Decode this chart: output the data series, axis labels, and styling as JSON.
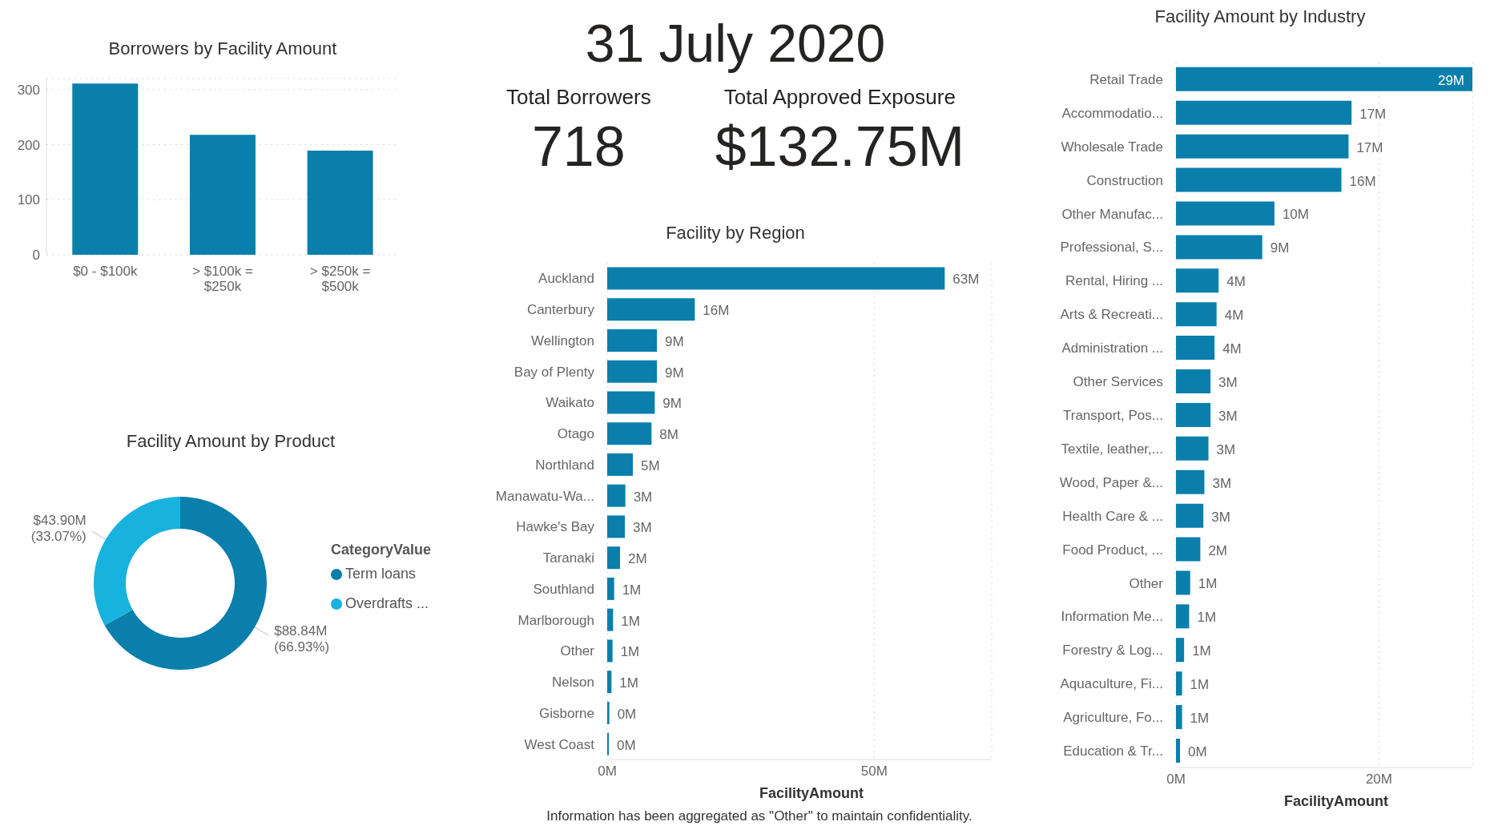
{
  "chart_data": [
    {
      "type": "bar",
      "title": "Borrowers by Facility Amount",
      "categories": [
        "$0 - $100k",
        "> $100k = $250k",
        "> $250k = $500k"
      ],
      "values": [
        311,
        218,
        189
      ],
      "color": "#0a7fab",
      "ylim": [
        0,
        320
      ],
      "yticks": [
        0,
        100,
        200,
        300
      ],
      "grid": "y"
    },
    {
      "type": "donut",
      "title": "Facility Amount by Product",
      "categories": [
        "Term loans",
        "Overdrafts ..."
      ],
      "values": [
        66.93,
        33.07
      ],
      "value_labels": [
        "$88.84M\n(66.93%)",
        "$43.90M\n(33.07%)"
      ],
      "colors": [
        "#0a7fab",
        "#18b2df"
      ],
      "legend_title": "CategoryValue",
      "legend": "right"
    },
    {
      "type": "other",
      "title": "31 July 2020",
      "annotations": [
        "Total Borrowers",
        "718",
        "Total Approved Exposure",
        "$132.75M"
      ]
    },
    {
      "type": "bar",
      "orientation": "horizontal",
      "title": "Facility by Region",
      "categories": [
        "Auckland",
        "Canterbury",
        "Wellington",
        "Bay of Plenty",
        "Waikato",
        "Otago",
        "Northland",
        "Manawatu-Wa...",
        "Hawke's Bay",
        "Taranaki",
        "Southland",
        "Marlborough",
        "Other",
        "Nelson",
        "Gisborne",
        "West Coast"
      ],
      "values": [
        63.2,
        16.4,
        9.3,
        9.3,
        8.9,
        8.3,
        4.8,
        3.4,
        3.3,
        2.4,
        1.3,
        1.1,
        1.0,
        0.8,
        0.4,
        0.3
      ],
      "value_labels": [
        "63M",
        "16M",
        "9M",
        "9M",
        "9M",
        "8M",
        "5M",
        "3M",
        "3M",
        "2M",
        "1M",
        "1M",
        "1M",
        "1M",
        "0M",
        "0M"
      ],
      "color": "#0a7fab",
      "xlim": [
        0,
        72
      ],
      "xticks": [
        {
          "value": 0,
          "label": "0M"
        },
        {
          "value": 50,
          "label": "50M"
        }
      ],
      "xlabel": "FacilityAmount",
      "grid": "x",
      "annotations": [
        "Information has been aggregated as \"Other\" to maintain confidentiality."
      ]
    },
    {
      "type": "bar",
      "orientation": "horizontal",
      "title": "Facility Amount by Industry",
      "categories": [
        "Retail Trade",
        "Accommodatio...",
        "Wholesale Trade",
        "Construction",
        "Other Manufac...",
        "Professional, S...",
        "Rental, Hiring ...",
        "Arts & Recreati...",
        "Administration ...",
        "Other Services",
        "Transport, Pos...",
        "Textile, leather,...",
        "Wood, Paper &...",
        "Health Care & ...",
        "Food Product, ...",
        "Other",
        "Information Me...",
        "Forestry & Log...",
        "Aquaculture, Fi...",
        "Agriculture, Fo...",
        "Education & Tr..."
      ],
      "values": [
        29.2,
        17.3,
        17.0,
        16.3,
        9.7,
        8.5,
        4.2,
        4.0,
        3.8,
        3.4,
        3.4,
        3.2,
        2.8,
        2.7,
        2.4,
        1.4,
        1.3,
        0.8,
        0.6,
        0.6,
        0.4
      ],
      "value_labels": [
        "29M",
        "17M",
        "17M",
        "16M",
        "10M",
        "9M",
        "4M",
        "4M",
        "4M",
        "3M",
        "3M",
        "3M",
        "3M",
        "3M",
        "2M",
        "1M",
        "1M",
        "1M",
        "1M",
        "1M",
        "0M"
      ],
      "color": "#0a7fab",
      "xlim": [
        0,
        29.2
      ],
      "xticks": [
        {
          "value": 0,
          "label": "0M"
        },
        {
          "value": 20,
          "label": "20M"
        }
      ],
      "xlabel": "FacilityAmount",
      "grid": "x"
    }
  ]
}
